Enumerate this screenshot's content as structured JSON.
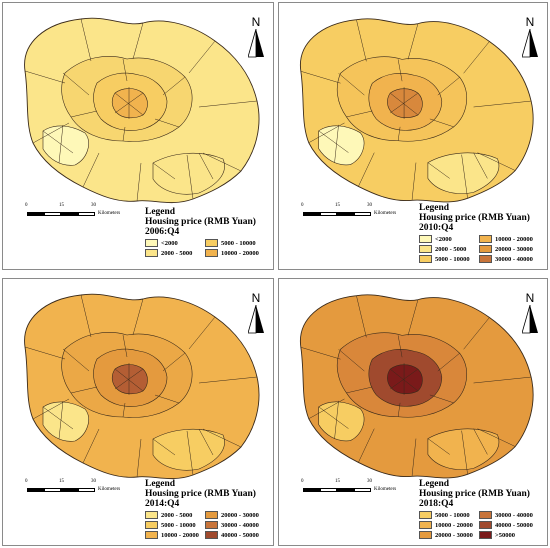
{
  "north_label": "N",
  "scale": {
    "ticks": [
      "0",
      "15",
      "30"
    ],
    "unit": "Kilometers"
  },
  "legend_title": "Legend",
  "legend_subtitle": "Housing price (RMB Yuan)",
  "panels": [
    {
      "period": "2006:Q4",
      "classes": [
        {
          "label": "<2000",
          "color": "#fef8b8"
        },
        {
          "label": "2000 - 5000",
          "color": "#fbe58a"
        },
        {
          "label": "5000 - 10000",
          "color": "#f7cd62"
        },
        {
          "label": "10000 - 20000",
          "color": "#f1b34e"
        }
      ],
      "districts": {
        "outer": "#fbe58a",
        "west": "#fef8b8",
        "south_east": "#fbe58a",
        "suburb": "#f7d670",
        "ring": "#f7cd62",
        "core": "#f1b34e"
      }
    },
    {
      "period": "2010:Q4",
      "classes": [
        {
          "label": "<2000",
          "color": "#fef8b8"
        },
        {
          "label": "10000 - 20000",
          "color": "#f1b34e"
        },
        {
          "label": "2000 - 5000",
          "color": "#fbe58a"
        },
        {
          "label": "20000 - 30000",
          "color": "#e49a3e"
        },
        {
          "label": "5000 - 10000",
          "color": "#f7cd62"
        },
        {
          "label": "30000 - 40000",
          "color": "#c8743a"
        }
      ],
      "districts": {
        "outer": "#f7cd62",
        "west": "#fef8b8",
        "south_east": "#fbe58a",
        "suburb": "#f5c45a",
        "ring": "#f1b34e",
        "core": "#d8883c"
      }
    },
    {
      "period": "2014:Q4",
      "classes": [
        {
          "label": "2000 - 5000",
          "color": "#fbe58a"
        },
        {
          "label": "20000 - 30000",
          "color": "#e49a3e"
        },
        {
          "label": "5000 - 10000",
          "color": "#f7cd62"
        },
        {
          "label": "30000 - 40000",
          "color": "#c8743a"
        },
        {
          "label": "10000 - 20000",
          "color": "#f1b34e"
        },
        {
          "label": "40000 - 50000",
          "color": "#a04a2e"
        }
      ],
      "districts": {
        "outer": "#f1b34e",
        "west": "#fbe58a",
        "south_east": "#f7cd62",
        "suburb": "#eba846",
        "ring": "#e49a3e",
        "core": "#b45e34"
      }
    },
    {
      "period": "2018:Q4",
      "classes": [
        {
          "label": "5000 - 10000",
          "color": "#f7cd62"
        },
        {
          "label": "30000 - 40000",
          "color": "#c8743a"
        },
        {
          "label": "10000 - 20000",
          "color": "#f1b34e"
        },
        {
          "label": "40000 - 50000",
          "color": "#a04a2e"
        },
        {
          "label": "20000 - 30000",
          "color": "#e49a3e"
        },
        {
          "label": ">50000",
          "color": "#7a1a1a"
        }
      ],
      "districts": {
        "outer": "#e49a3e",
        "west": "#f7cd62",
        "south_east": "#f1b34e",
        "suburb": "#d9873a",
        "ring": "#a04a2e",
        "core": "#7a1a1a"
      }
    }
  ]
}
